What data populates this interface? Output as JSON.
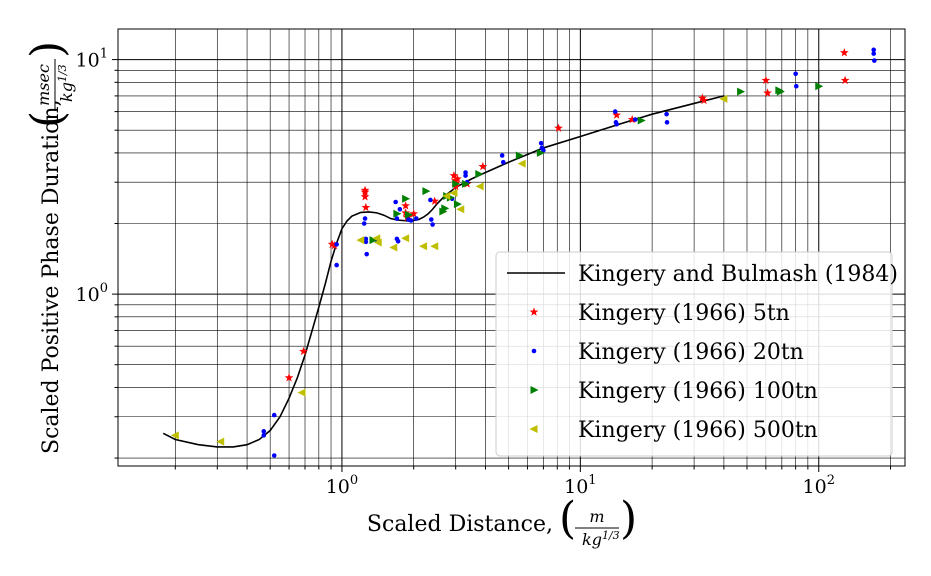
{
  "chart_data": {
    "type": "scatter",
    "title": "",
    "xlabel": "Scaled Distance,",
    "xlabel_frac": {
      "num": "m",
      "den": "kg",
      "den_exp": "1/3"
    },
    "ylabel": "Scaled Positive Phase Duration,",
    "ylabel_frac": {
      "num": "msec",
      "den": "kg",
      "den_exp": "1/3"
    },
    "xscale": "log",
    "yscale": "log",
    "xlim": [
      0.115,
      230
    ],
    "ylim": [
      0.185,
      13.5
    ],
    "grid": "major and minor",
    "legend_position": "lower-right",
    "x_ticks": [
      {
        "base": "10",
        "exp": "0",
        "value": 1
      },
      {
        "base": "10",
        "exp": "1",
        "value": 10
      },
      {
        "base": "10",
        "exp": "2",
        "value": 100
      }
    ],
    "y_ticks": [
      {
        "base": "10",
        "exp": "0",
        "value": 1
      },
      {
        "base": "10",
        "exp": "1",
        "value": 10
      }
    ],
    "curve": {
      "name": "Kingery and Bulmash (1984)",
      "color": "#000000",
      "x": [
        0.178,
        0.2,
        0.25,
        0.3,
        0.35,
        0.4,
        0.45,
        0.5,
        0.55,
        0.6,
        0.65,
        0.7,
        0.75,
        0.8,
        0.85,
        0.9,
        0.95,
        1.0,
        1.05,
        1.1,
        1.2,
        1.3,
        1.4,
        1.5,
        1.6,
        1.7,
        1.8,
        1.9,
        2.0,
        2.1,
        2.2,
        2.3,
        2.4,
        2.5,
        2.7,
        3.0,
        3.5,
        4.0,
        5.0,
        7.0,
        10,
        15,
        20,
        30,
        40
      ],
      "y": [
        0.255,
        0.24,
        0.228,
        0.223,
        0.223,
        0.228,
        0.24,
        0.262,
        0.3,
        0.36,
        0.44,
        0.55,
        0.7,
        0.88,
        1.1,
        1.38,
        1.65,
        1.9,
        2.05,
        2.15,
        2.23,
        2.24,
        2.22,
        2.17,
        2.1,
        2.07,
        2.06,
        2.05,
        2.06,
        2.08,
        2.13,
        2.2,
        2.3,
        2.42,
        2.62,
        2.85,
        3.1,
        3.3,
        3.65,
        4.2,
        4.7,
        5.35,
        5.85,
        6.5,
        7.0
      ]
    },
    "series": [
      {
        "name": "Kingery (1966) 5tn",
        "marker": "star",
        "color": "#ff0000",
        "x": [
          0.6,
          0.69,
          0.91,
          0.93,
          1.25,
          1.25,
          1.25,
          1.26,
          1.85,
          1.85,
          1.88,
          1.9,
          2.0,
          2.45,
          2.95,
          3.0,
          3.0,
          3.0,
          3.05,
          3.35,
          3.9,
          8.1,
          14.2,
          16.5,
          32.5,
          33,
          60,
          61,
          128,
          129
        ],
        "y": [
          0.44,
          0.57,
          1.63,
          1.61,
          2.6,
          2.72,
          2.77,
          2.34,
          2.38,
          2.22,
          2.12,
          2.15,
          2.2,
          2.49,
          3.2,
          3.05,
          2.97,
          2.88,
          3.1,
          2.95,
          3.5,
          5.1,
          5.8,
          5.55,
          6.85,
          6.7,
          8.15,
          7.2,
          10.7,
          8.15
        ]
      },
      {
        "name": "Kingery (1966) 20tn",
        "marker": "circle",
        "color": "#0000ff",
        "x": [
          0.47,
          0.47,
          0.52,
          0.52,
          0.95,
          0.95,
          1.24,
          1.25,
          1.26,
          1.26,
          1.27,
          1.4,
          1.68,
          1.7,
          1.7,
          1.72,
          1.75,
          1.9,
          1.95,
          2.05,
          2.35,
          2.37,
          2.4,
          2.9,
          3.3,
          3.3,
          3.35,
          4.7,
          4.75,
          6.85,
          6.9,
          7.0,
          14,
          14.1,
          14.2,
          17,
          23,
          23.1,
          80,
          80.5,
          170,
          170,
          171
        ],
        "y": [
          0.26,
          0.25,
          0.305,
          0.205,
          1.63,
          1.33,
          2.0,
          2.1,
          1.72,
          1.67,
          1.48,
          1.7,
          2.47,
          2.1,
          1.72,
          1.68,
          2.3,
          2.08,
          2.06,
          2.1,
          2.52,
          2.08,
          1.98,
          2.55,
          3.3,
          3.2,
          3.0,
          3.9,
          3.65,
          4.4,
          4.2,
          4.1,
          6.0,
          5.4,
          5.3,
          5.55,
          5.85,
          5.4,
          8.7,
          7.7,
          11.0,
          10.6,
          9.9
        ]
      },
      {
        "name": "Kingery (1966) 100tn",
        "marker": "triangle-right",
        "color": "#008000",
        "x": [
          1.35,
          1.7,
          1.85,
          1.9,
          2.25,
          2.65,
          2.7,
          2.75,
          2.85,
          3.0,
          3.05,
          3.3,
          3.75,
          5.55,
          6.8,
          18,
          47,
          68,
          69,
          100
        ],
        "y": [
          1.7,
          2.2,
          2.55,
          2.18,
          2.75,
          2.25,
          2.32,
          2.62,
          2.58,
          2.95,
          2.42,
          2.95,
          3.25,
          3.9,
          4.0,
          5.5,
          7.3,
          7.4,
          7.3,
          7.7
        ]
      },
      {
        "name": "Kingery (1966) 500tn",
        "marker": "triangle-left",
        "color": "#bfbf00",
        "x": [
          0.2,
          0.31,
          0.68,
          1.2,
          1.4,
          1.42,
          1.65,
          1.85,
          2.2,
          2.45,
          2.75,
          2.95,
          3.15,
          3.8,
          5.7,
          40
        ],
        "y": [
          0.25,
          0.235,
          0.38,
          1.7,
          1.73,
          1.66,
          1.58,
          1.73,
          1.6,
          1.6,
          2.62,
          2.7,
          2.3,
          2.88,
          3.6,
          6.8
        ]
      }
    ]
  }
}
